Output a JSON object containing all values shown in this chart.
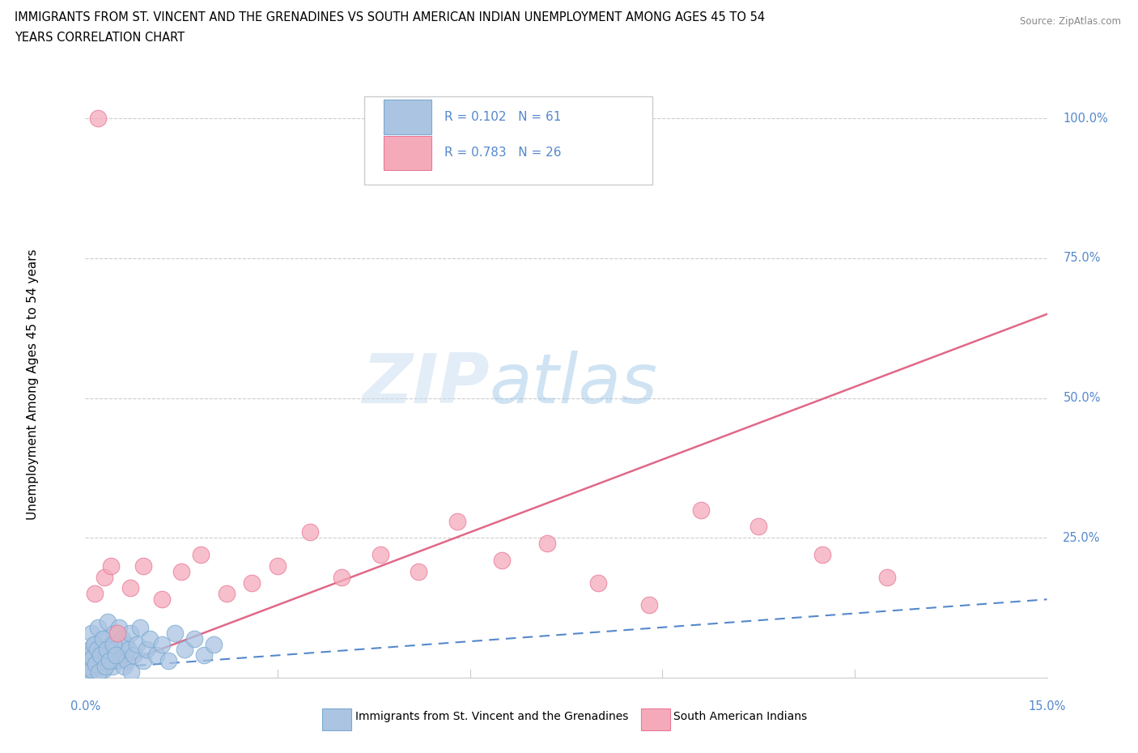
{
  "title_line1": "IMMIGRANTS FROM ST. VINCENT AND THE GRENADINES VS SOUTH AMERICAN INDIAN UNEMPLOYMENT AMONG AGES 45 TO 54",
  "title_line2": "YEARS CORRELATION CHART",
  "source_text": "Source: ZipAtlas.com",
  "ylabel_label": "Unemployment Among Ages 45 to 54 years",
  "legend1_label": "Immigrants from St. Vincent and the Grenadines",
  "legend2_label": "South American Indians",
  "R1": "0.102",
  "N1": "61",
  "R2": "0.783",
  "N2": "26",
  "color_blue": "#aac4e2",
  "color_blue_edge": "#7aaad0",
  "color_pink": "#f5aaba",
  "color_pink_edge": "#e87898",
  "color_line_blue": "#5588cc",
  "color_line_pink": "#e06888",
  "color_grid": "#cccccc",
  "color_axis_label": "#5588cc",
  "blue_x": [
    0.02,
    0.03,
    0.05,
    0.07,
    0.08,
    0.1,
    0.12,
    0.15,
    0.18,
    0.2,
    0.22,
    0.25,
    0.28,
    0.3,
    0.32,
    0.35,
    0.38,
    0.4,
    0.42,
    0.45,
    0.48,
    0.5,
    0.52,
    0.55,
    0.58,
    0.6,
    0.62,
    0.65,
    0.68,
    0.7,
    0.72,
    0.75,
    0.8,
    0.85,
    0.9,
    0.95,
    1.0,
    1.1,
    1.2,
    1.3,
    1.4,
    1.55,
    1.7,
    1.85,
    2.0,
    0.01,
    0.04,
    0.06,
    0.09,
    0.11,
    0.13,
    0.16,
    0.19,
    0.21,
    0.24,
    0.27,
    0.31,
    0.34,
    0.37,
    0.44,
    0.47
  ],
  "blue_y": [
    1.0,
    3.0,
    0.5,
    5.0,
    2.0,
    8.0,
    4.0,
    6.0,
    3.0,
    9.0,
    2.0,
    5.0,
    1.5,
    7.0,
    4.0,
    10.0,
    3.0,
    6.0,
    2.0,
    8.0,
    5.0,
    3.0,
    9.0,
    4.0,
    7.0,
    2.0,
    6.0,
    3.0,
    5.0,
    8.0,
    1.0,
    4.0,
    6.0,
    9.0,
    3.0,
    5.0,
    7.0,
    4.0,
    6.0,
    3.0,
    8.0,
    5.0,
    7.0,
    4.0,
    6.0,
    0.5,
    2.0,
    4.0,
    1.5,
    3.5,
    6.0,
    2.5,
    5.0,
    1.0,
    4.0,
    7.0,
    2.0,
    5.0,
    3.0,
    6.0,
    4.0
  ],
  "pink_x": [
    0.15,
    0.3,
    0.5,
    0.7,
    0.9,
    1.2,
    1.5,
    1.8,
    2.2,
    2.6,
    3.0,
    3.5,
    4.0,
    4.6,
    5.2,
    5.8,
    6.5,
    7.2,
    8.0,
    8.8,
    9.6,
    10.5,
    11.5,
    12.5,
    0.4,
    0.2
  ],
  "pink_y": [
    15.0,
    18.0,
    8.0,
    16.0,
    20.0,
    14.0,
    19.0,
    22.0,
    15.0,
    17.0,
    20.0,
    26.0,
    18.0,
    22.0,
    19.0,
    28.0,
    21.0,
    24.0,
    17.0,
    13.0,
    30.0,
    27.0,
    22.0,
    18.0,
    20.0,
    100.0
  ],
  "blue_line_x": [
    0.0,
    15.0
  ],
  "blue_line_y": [
    1.5,
    14.0
  ],
  "pink_line_x": [
    0.0,
    15.0
  ],
  "pink_line_y": [
    0.0,
    65.0
  ],
  "xmin": 0.0,
  "xmax": 15.0,
  "ymin": 0.0,
  "ymax": 105.0,
  "yticks": [
    0,
    25,
    50,
    75,
    100
  ],
  "xtick_positions": [
    0,
    3,
    6,
    9,
    12,
    15
  ]
}
